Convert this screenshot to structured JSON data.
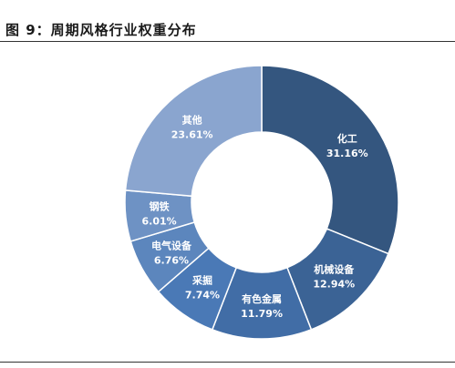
{
  "figure": {
    "title": "图 9：周期风格行业权重分布"
  },
  "chart_data": {
    "type": "pie",
    "subtype": "donut",
    "title": "",
    "legend": "none",
    "slices": [
      {
        "name": "化工",
        "value": 31.16,
        "label": "31.16%",
        "color": "#34567f"
      },
      {
        "name": "机械设备",
        "value": 12.94,
        "label": "12.94%",
        "color": "#3b6395"
      },
      {
        "name": "有色金属",
        "value": 11.79,
        "label": "11.79%",
        "color": "#416da6"
      },
      {
        "name": "采掘",
        "value": 7.74,
        "label": "7.74%",
        "color": "#4a79b6"
      },
      {
        "name": "电气设备",
        "value": 6.76,
        "label": "6.76%",
        "color": "#5c86bd"
      },
      {
        "name": "钢铁",
        "value": 6.01,
        "label": "6.01%",
        "color": "#6e92c4"
      },
      {
        "name": "其他",
        "value": 23.61,
        "label": "23.61%",
        "color": "#8aa5cf"
      }
    ]
  }
}
